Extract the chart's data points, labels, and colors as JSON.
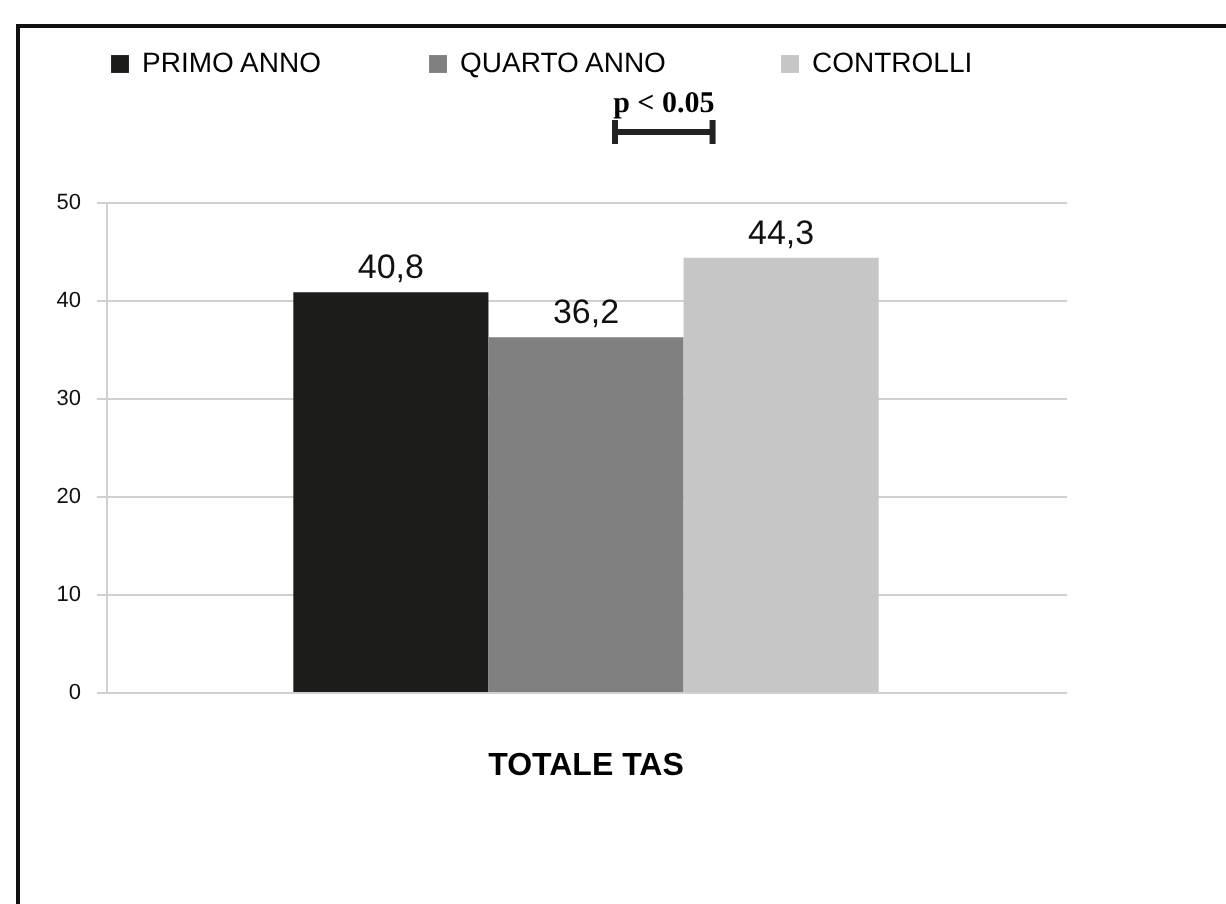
{
  "chart_data": {
    "type": "bar",
    "categories": [
      "TOTALE TAS"
    ],
    "series": [
      {
        "name": "PRIMO ANNO",
        "color": "#1c1c1b",
        "values": [
          40.8
        ],
        "value_labels": [
          "40,8"
        ]
      },
      {
        "name": "QUARTO  ANNO",
        "color": "#808080",
        "values": [
          36.2
        ],
        "value_labels": [
          "36,2"
        ]
      },
      {
        "name": "CONTROLLI",
        "color": "#c6c6c6",
        "values": [
          44.3
        ],
        "value_labels": [
          "44,3"
        ]
      }
    ],
    "ylim": [
      0,
      50
    ],
    "yticks": [
      0,
      10,
      20,
      30,
      40,
      50
    ],
    "grid": "y",
    "legend": "top",
    "annotations": [
      "p < 0.05"
    ]
  }
}
